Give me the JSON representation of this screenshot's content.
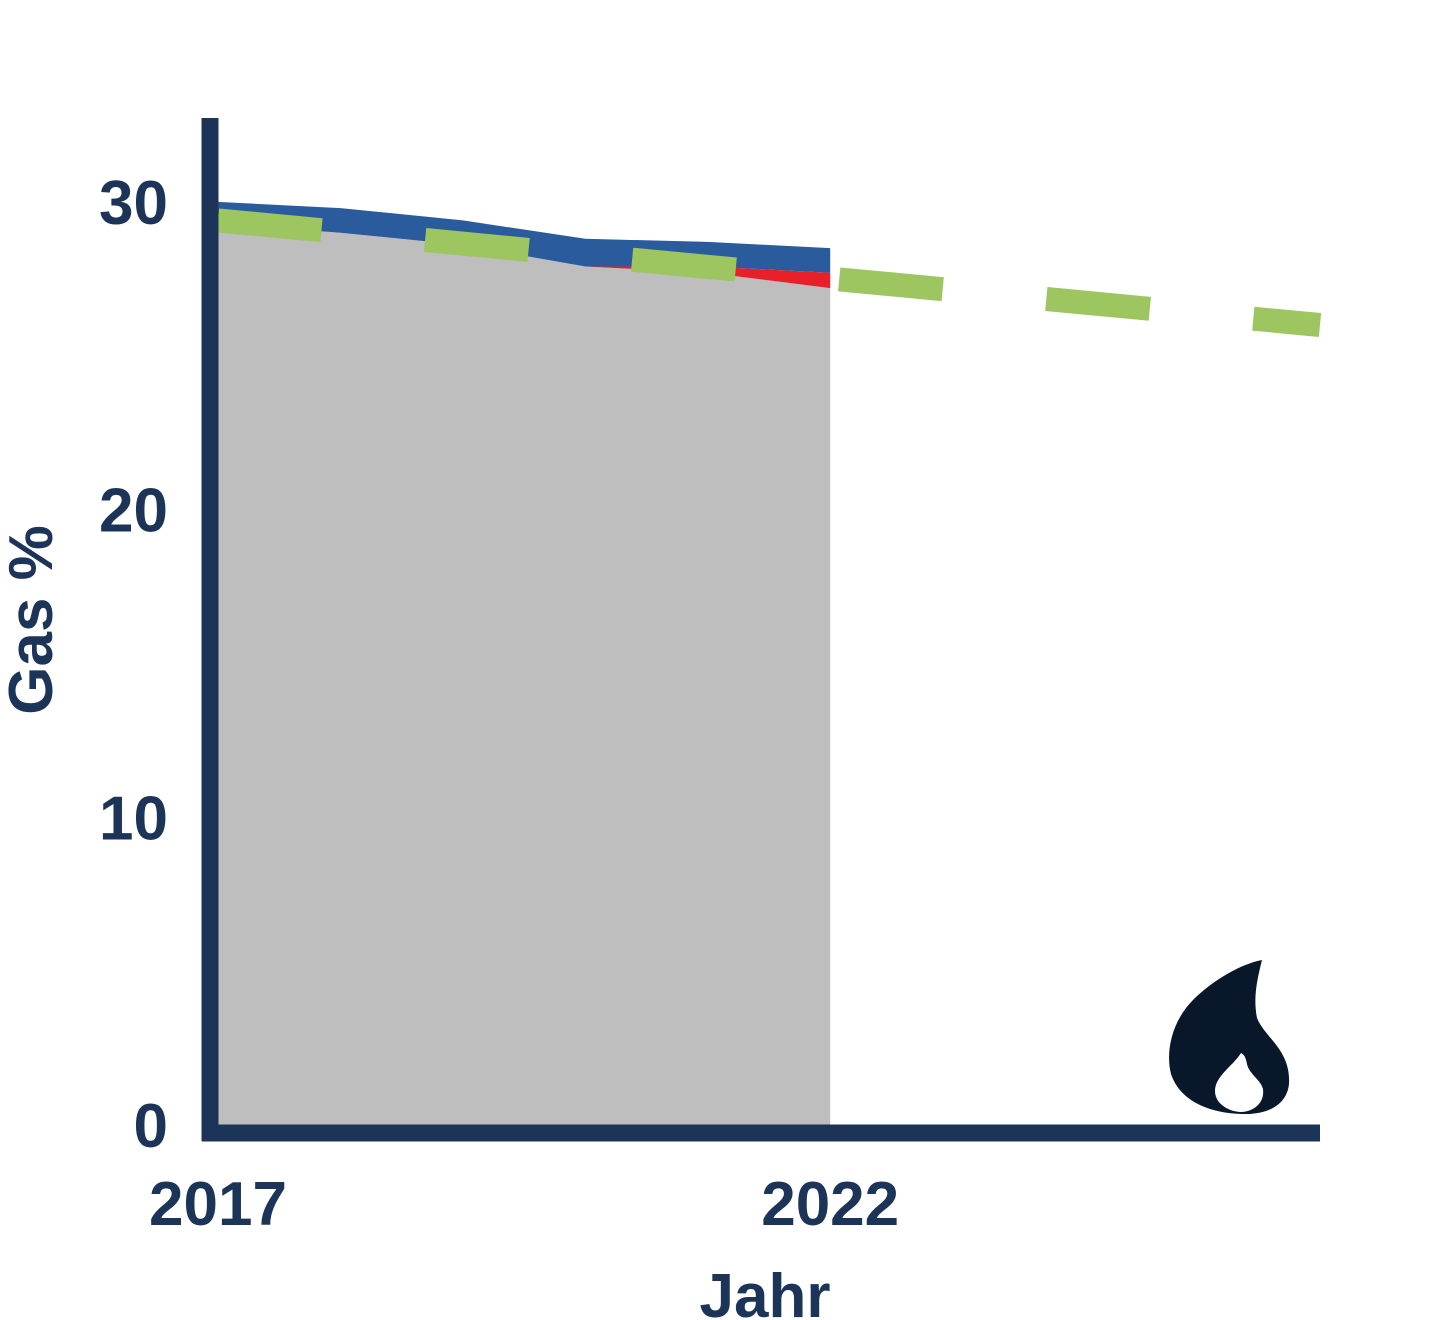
{
  "chart_data": {
    "type": "area",
    "title": "",
    "xlabel": "Jahr",
    "ylabel": "Gas %",
    "x_tick_labels": [
      {
        "x": 2017,
        "label": "2017"
      },
      {
        "x": 2022,
        "label": "2022"
      }
    ],
    "y_ticks": [
      {
        "y": 0,
        "label": "0"
      },
      {
        "y": 10,
        "label": "10"
      },
      {
        "y": 20,
        "label": "20"
      },
      {
        "y": 30,
        "label": "30"
      }
    ],
    "xlim": [
      2017,
      2026
    ],
    "ylim": [
      0,
      32.5
    ],
    "grid": false,
    "legend": "none",
    "series": [
      {
        "kind": "stacked-area-base",
        "color": "#bebebe",
        "x": [
          2017,
          2018,
          2019,
          2020,
          2021,
          2022
        ],
        "values": [
          29.3,
          29.0,
          28.6,
          27.9,
          27.7,
          27.2
        ]
      },
      {
        "kind": "stacked-area-layer",
        "color": "#e8202a",
        "x": [
          2017,
          2018,
          2019,
          2020,
          2021,
          2022
        ],
        "values": [
          0,
          0,
          0,
          0,
          0.2,
          0.5
        ]
      },
      {
        "kind": "stacked-area-layer",
        "color": "#2a5b9c",
        "x": [
          2017,
          2018,
          2019,
          2020,
          2021,
          2022
        ],
        "values": [
          0.7,
          0.8,
          0.8,
          0.9,
          0.8,
          0.8
        ]
      },
      {
        "kind": "dashed-line",
        "color": "#9dc560",
        "x": [
          2017,
          2026
        ],
        "values": [
          29.4,
          26.0
        ]
      }
    ],
    "colors": {
      "axis": "#1c3458",
      "text": "#1c3458",
      "icon": "#081729"
    },
    "icon": "flame-icon"
  }
}
